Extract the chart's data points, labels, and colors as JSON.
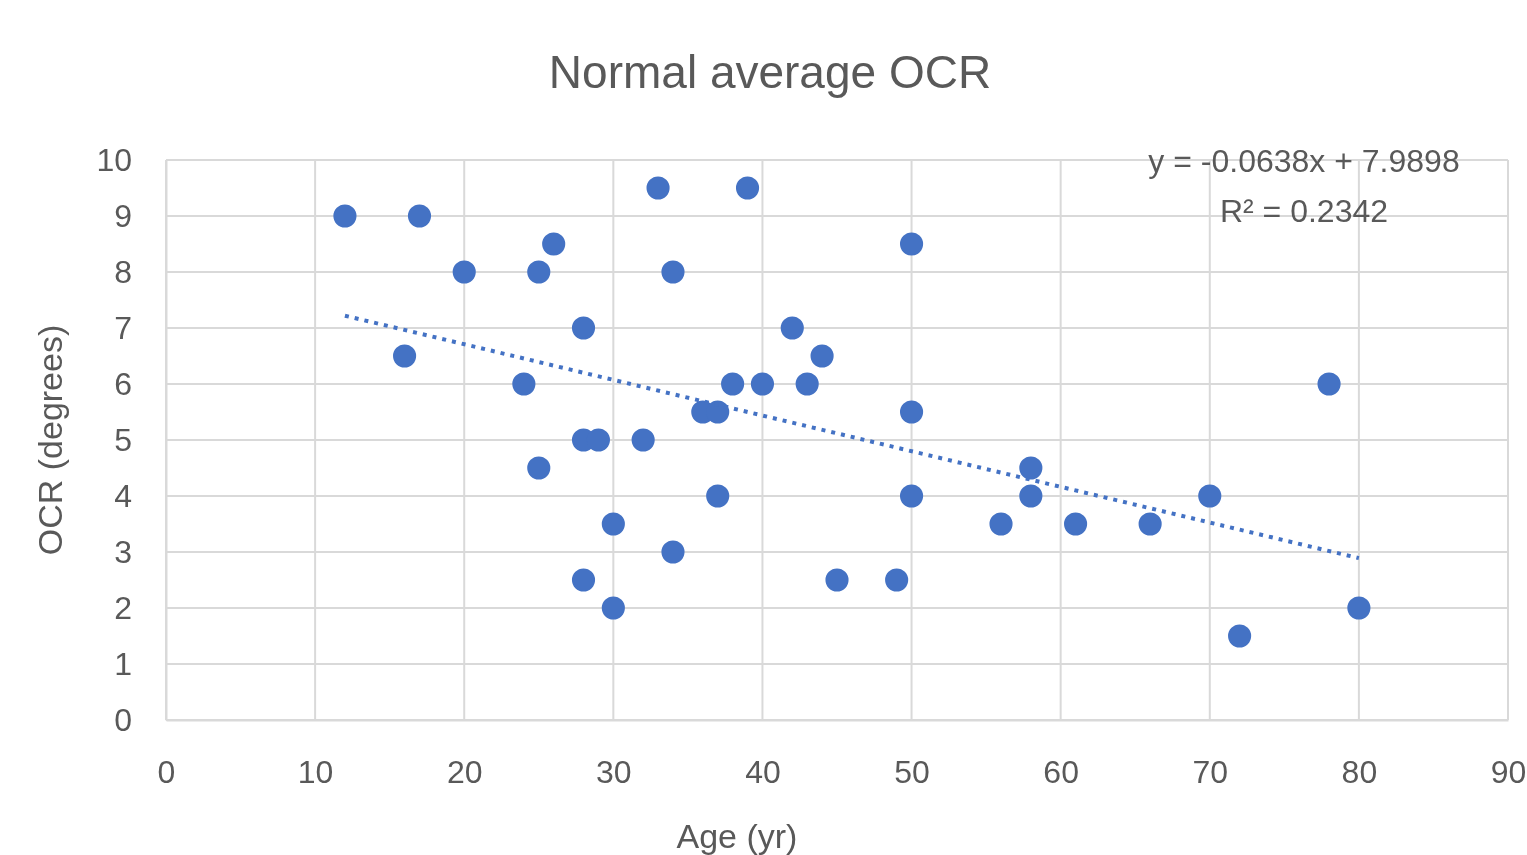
{
  "chart_data": {
    "type": "scatter",
    "title": "Normal average OCR",
    "xlabel": "Age (yr)",
    "ylabel": "OCR (degrees)",
    "xlim": [
      0,
      90
    ],
    "xticks": [
      0,
      10,
      20,
      30,
      40,
      50,
      60,
      70,
      80,
      90
    ],
    "ylim": [
      0,
      10
    ],
    "yticks": [
      0,
      1,
      2,
      3,
      4,
      5,
      6,
      7,
      8,
      9,
      10
    ],
    "grid": true,
    "annotations": [
      "y = -0.0638x + 7.9898",
      "R² = 0.2342"
    ],
    "series": [
      {
        "marker": "circle",
        "color": "#4472c4",
        "x": [
          12,
          17,
          20,
          16,
          25,
          26,
          24,
          28,
          25,
          28,
          29,
          30,
          28,
          30,
          32,
          33,
          34,
          34,
          36,
          37,
          37,
          38,
          39,
          40,
          42,
          43,
          44,
          45,
          49,
          50,
          50,
          50,
          56,
          58,
          58,
          61,
          66,
          70,
          72,
          78,
          80
        ],
        "values": [
          9,
          9,
          8,
          6.5,
          8,
          8.5,
          6,
          7,
          4.5,
          5,
          5,
          3.5,
          2.5,
          2,
          5,
          9.5,
          8,
          3,
          5.5,
          5.5,
          4,
          6,
          9.5,
          6,
          7,
          6,
          6.5,
          2.5,
          2.5,
          8.5,
          5.5,
          4,
          3.5,
          4.5,
          4,
          3.5,
          3.5,
          4,
          1.5,
          6,
          2
        ]
      },
      {
        "type": "line",
        "color": "#4472c4",
        "line_style": "dotted",
        "marker": "none",
        "x": [
          12,
          80
        ],
        "values": [
          7.22,
          2.89
        ]
      }
    ]
  }
}
